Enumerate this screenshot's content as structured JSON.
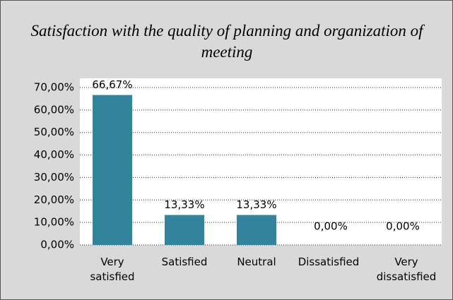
{
  "chart_data": {
    "type": "bar",
    "title": "Satisfaction with the quality of planning and organization of meeting",
    "categories": [
      "Very satisfied",
      "Satisfied",
      "Neutral",
      "Dissatisfied",
      "Very dissatisfied"
    ],
    "values": [
      66.67,
      13.33,
      13.33,
      0,
      0
    ],
    "value_labels": [
      "66,67%",
      "13,33%",
      "13,33%",
      "0,00%",
      "0,00%"
    ],
    "color": "#31849b",
    "ylim": [
      0,
      70
    ],
    "yticks": [
      {
        "value": 0,
        "label": "0,00%"
      },
      {
        "value": 10,
        "label": "10,00%"
      },
      {
        "value": 20,
        "label": "20,00%"
      },
      {
        "value": 30,
        "label": "30,00%"
      },
      {
        "value": 40,
        "label": "40,00%"
      },
      {
        "value": 50,
        "label": "50,00%"
      },
      {
        "value": 60,
        "label": "60,00%"
      },
      {
        "value": 70,
        "label": "70,00%"
      }
    ],
    "grid": true
  }
}
